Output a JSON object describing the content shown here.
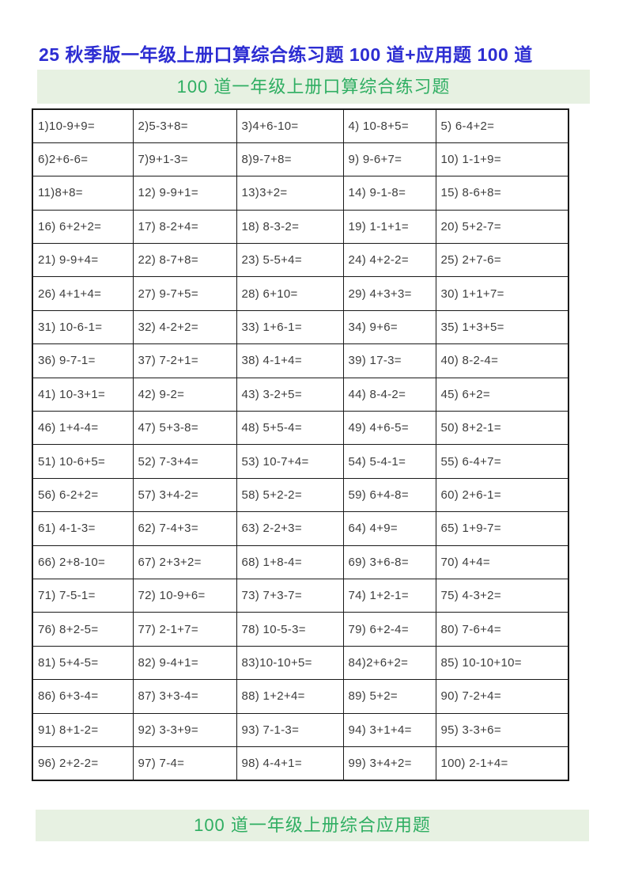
{
  "document": {
    "title": "25 秋季版一年级上册口算综合练习题 100 道+应用题 100 道"
  },
  "sections": {
    "oral_practice_heading": "100 道一年级上册口算综合练习题",
    "word_problems_heading": "100 道一年级上册综合应用题"
  },
  "colors": {
    "title_blue": "#2d2dd2",
    "heading_green": "#2fae62",
    "banner_background": "#e7f1e2",
    "table_border": "#1a1a1a",
    "problem_text": "#3d3d3d"
  },
  "worksheet": {
    "rows": [
      [
        "1)10-9+9=",
        "2)5-3+8=",
        "3)4+6-10=",
        "4) 10-8+5=",
        "5) 6-4+2="
      ],
      [
        "6)2+6-6=",
        "7)9+1-3=",
        "8)9-7+8=",
        "9) 9-6+7=",
        "10) 1-1+9="
      ],
      [
        "11)8+8=",
        "12) 9-9+1=",
        "13)3+2=",
        "14) 9-1-8=",
        "15) 8-6+8="
      ],
      [
        "16) 6+2+2=",
        "17) 8-2+4=",
        "18) 8-3-2=",
        "19) 1-1+1=",
        "20) 5+2-7="
      ],
      [
        "21) 9-9+4=",
        "22) 8-7+8=",
        "23) 5-5+4=",
        "24) 4+2-2=",
        "25) 2+7-6="
      ],
      [
        "26) 4+1+4=",
        "27) 9-7+5=",
        "28) 6+10=",
        "29) 4+3+3=",
        "30) 1+1+7="
      ],
      [
        "31) 10-6-1=",
        "32) 4-2+2=",
        "33) 1+6-1=",
        "34) 9+6=",
        "35) 1+3+5="
      ],
      [
        "36) 9-7-1=",
        "37) 7-2+1=",
        "38) 4-1+4=",
        "39) 17-3=",
        "40) 8-2-4="
      ],
      [
        "41) 10-3+1=",
        "42) 9-2=",
        "43) 3-2+5=",
        "44) 8-4-2=",
        "45) 6+2="
      ],
      [
        "46) 1+4-4=",
        "47) 5+3-8=",
        "48) 5+5-4=",
        "49) 4+6-5=",
        "50) 8+2-1="
      ],
      [
        "51) 10-6+5=",
        "52) 7-3+4=",
        "53) 10-7+4=",
        "54) 5-4-1=",
        "55) 6-4+7="
      ],
      [
        "56) 6-2+2=",
        "57) 3+4-2=",
        "58) 5+2-2=",
        "59) 6+4-8=",
        "60) 2+6-1="
      ],
      [
        "61) 4-1-3=",
        "62) 7-4+3=",
        "63) 2-2+3=",
        "64) 4+9=",
        "65) 1+9-7="
      ],
      [
        "66) 2+8-10=",
        "67) 2+3+2=",
        "68) 1+8-4=",
        "69) 3+6-8=",
        "70) 4+4="
      ],
      [
        "71) 7-5-1=",
        "72) 10-9+6=",
        "73) 7+3-7=",
        "74) 1+2-1=",
        "75) 4-3+2="
      ],
      [
        "76) 8+2-5=",
        "77) 2-1+7=",
        "78) 10-5-3=",
        "79) 6+2-4=",
        "80) 7-6+4="
      ],
      [
        "81) 5+4-5=",
        "82) 9-4+1=",
        "83)10-10+5=",
        "84)2+6+2=",
        "85) 10-10+10="
      ],
      [
        "86) 6+3-4=",
        "87) 3+3-4=",
        "88) 1+2+4=",
        "89) 5+2=",
        "90) 7-2+4="
      ],
      [
        "91) 8+1-2=",
        "92) 3-3+9=",
        "93) 7-1-3=",
        "94) 3+1+4=",
        "95) 3-3+6="
      ],
      [
        "96) 2+2-2=",
        "97) 7-4=",
        "98) 4-4+1=",
        "99) 3+4+2=",
        "100) 2-1+4="
      ]
    ]
  }
}
